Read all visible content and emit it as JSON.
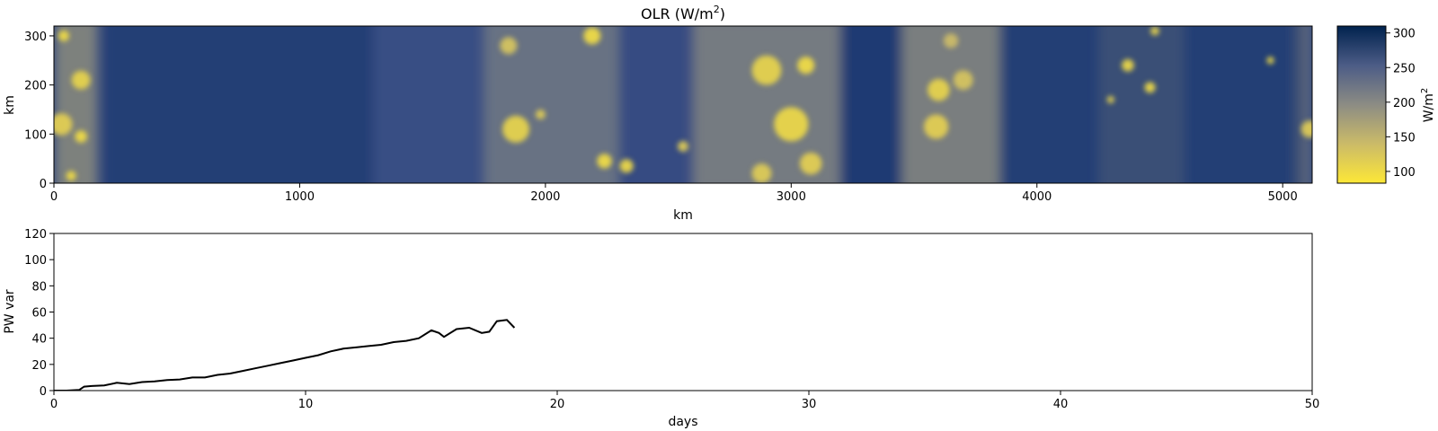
{
  "chart_data": [
    {
      "type": "heatmap",
      "title": "OLR (W/m",
      "title_sup": "2",
      "title_end": ")",
      "xlabel": "km",
      "ylabel": "km",
      "xlim": [
        0,
        5120
      ],
      "ylim": [
        0,
        320
      ],
      "x_ticks": [
        0,
        1000,
        2000,
        3000,
        4000,
        5000
      ],
      "y_ticks": [
        0,
        100,
        200,
        300
      ],
      "colormap": "cividis_r",
      "colorbar": {
        "label": "W/m",
        "label_sup": "2",
        "range": [
          83,
          310
        ],
        "ticks": [
          100,
          150,
          200,
          250,
          300
        ]
      },
      "field_description_values": {
        "clear_sky_band_values": [
          {
            "x_range": [
              200,
              1300
            ],
            "olr": 280
          },
          {
            "x_range": [
              1300,
              1750
            ],
            "olr": 250
          },
          {
            "x_range": [
              2300,
              2600
            ],
            "olr": 255
          },
          {
            "x_range": [
              3200,
              3450
            ],
            "olr": 285
          },
          {
            "x_range": [
              3850,
              5100
            ],
            "olr": 280
          }
        ],
        "convective_cells": [
          {
            "x": 40,
            "y": 300,
            "r": 22,
            "olr": 100
          },
          {
            "x": 110,
            "y": 210,
            "r": 38,
            "olr": 110
          },
          {
            "x": 30,
            "y": 120,
            "r": 45,
            "olr": 115
          },
          {
            "x": 110,
            "y": 95,
            "r": 25,
            "olr": 100
          },
          {
            "x": 70,
            "y": 15,
            "r": 20,
            "olr": 100
          },
          {
            "x": 1850,
            "y": 280,
            "r": 35,
            "olr": 130
          },
          {
            "x": 1880,
            "y": 110,
            "r": 55,
            "olr": 110
          },
          {
            "x": 1980,
            "y": 140,
            "r": 20,
            "olr": 120
          },
          {
            "x": 2190,
            "y": 300,
            "r": 35,
            "olr": 100
          },
          {
            "x": 2240,
            "y": 45,
            "r": 30,
            "olr": 100
          },
          {
            "x": 2330,
            "y": 35,
            "r": 28,
            "olr": 105
          },
          {
            "x": 2560,
            "y": 75,
            "r": 22,
            "olr": 120
          },
          {
            "x": 2900,
            "y": 230,
            "r": 60,
            "olr": 110
          },
          {
            "x": 3000,
            "y": 120,
            "r": 70,
            "olr": 105
          },
          {
            "x": 3060,
            "y": 240,
            "r": 35,
            "olr": 100
          },
          {
            "x": 3080,
            "y": 40,
            "r": 45,
            "olr": 115
          },
          {
            "x": 2880,
            "y": 20,
            "r": 40,
            "olr": 120
          },
          {
            "x": 3600,
            "y": 190,
            "r": 45,
            "olr": 110
          },
          {
            "x": 3590,
            "y": 115,
            "r": 50,
            "olr": 115
          },
          {
            "x": 3700,
            "y": 210,
            "r": 40,
            "olr": 130
          },
          {
            "x": 3650,
            "y": 290,
            "r": 30,
            "olr": 140
          },
          {
            "x": 4370,
            "y": 240,
            "r": 25,
            "olr": 105
          },
          {
            "x": 4460,
            "y": 195,
            "r": 22,
            "olr": 100
          },
          {
            "x": 4480,
            "y": 310,
            "r": 18,
            "olr": 110
          },
          {
            "x": 4300,
            "y": 170,
            "r": 15,
            "olr": 110
          },
          {
            "x": 4950,
            "y": 250,
            "r": 15,
            "olr": 100
          },
          {
            "x": 5110,
            "y": 110,
            "r": 35,
            "olr": 120
          }
        ]
      }
    },
    {
      "type": "line",
      "xlabel": "days",
      "ylabel": "PW var",
      "xlim": [
        0,
        50
      ],
      "ylim": [
        0,
        120
      ],
      "x_ticks": [
        0,
        10,
        20,
        30,
        40,
        50
      ],
      "y_ticks": [
        0,
        20,
        40,
        60,
        80,
        100,
        120
      ],
      "series": [
        {
          "color": "#000000",
          "x": [
            0,
            0.5,
            1.0,
            1.2,
            1.5,
            2.0,
            2.5,
            3.0,
            3.5,
            4.0,
            4.5,
            5.0,
            5.5,
            6.0,
            6.5,
            7.0,
            7.5,
            8.0,
            8.5,
            9.0,
            9.5,
            10.0,
            10.5,
            11.0,
            11.5,
            12.0,
            12.5,
            13.0,
            13.5,
            14.0,
            14.5,
            15.0,
            15.3,
            15.5,
            16.0,
            16.5,
            17.0,
            17.3,
            17.6,
            18.0,
            18.3
          ],
          "y": [
            0,
            0,
            0.5,
            3,
            3.5,
            4,
            6,
            5,
            6.5,
            7,
            8,
            8.5,
            10,
            10,
            12,
            13,
            15,
            17,
            19,
            21,
            23,
            25,
            27,
            30,
            32,
            33,
            34,
            35,
            37,
            38,
            40,
            46,
            44,
            41,
            47,
            48,
            44,
            45,
            53,
            54,
            48
          ]
        }
      ]
    }
  ]
}
